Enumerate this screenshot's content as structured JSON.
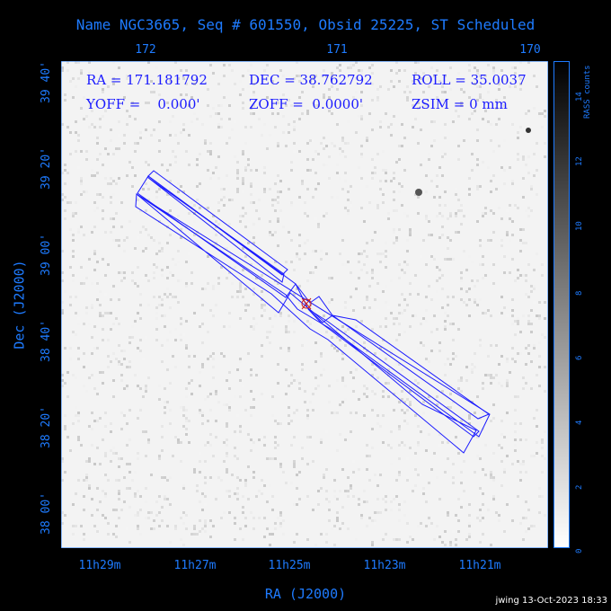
{
  "title": "Name NGC3665, Seq # 601550, Obsid 25225, ST Scheduled",
  "top_ticks": [
    "172",
    "171",
    "170"
  ],
  "bottom_ticks": [
    "11h29m",
    "11h27m",
    "11h25m",
    "11h23m",
    "11h21m"
  ],
  "left_ticks": [
    "39 40'",
    "39 20'",
    "39 00'",
    "38 40'",
    "38 20'",
    "38 00'"
  ],
  "xlabel": "RA (J2000)",
  "ylabel": "Dec (J2000)",
  "info": {
    "ra": "RA = 171.181792",
    "dec": "DEC = 38.762792",
    "roll": "ROLL = 35.0037",
    "yoff": "YOFF =    0.000'",
    "zoff": "ZOFF =  0.0000'",
    "zsim": "ZSIM = 0 mm"
  },
  "colorbar": {
    "label": "RASS counts",
    "ticks": [
      "0",
      "2",
      "4",
      "6",
      "8",
      "10",
      "12",
      "14"
    ]
  },
  "footer": "jwing 13-Oct-2023 18:33",
  "colors": {
    "axis": "#1e7bff",
    "overlay": "#1a1aff",
    "marker": "#cc2222"
  }
}
